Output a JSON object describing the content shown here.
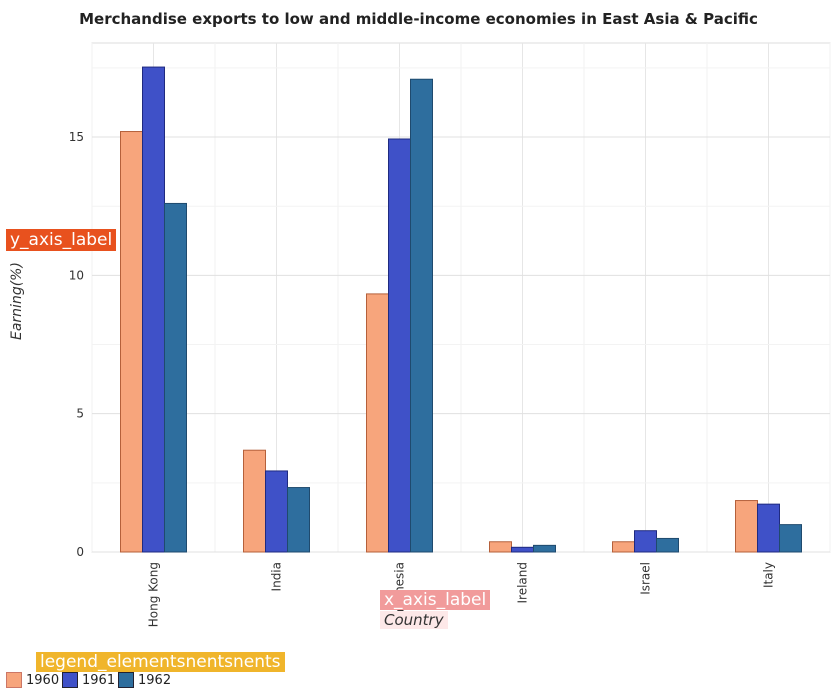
{
  "title": "Merchandise exports to low and middle-income economies in East Asia & Pacific",
  "colors": {
    "1960": "#f7a57c",
    "1961": "#3f51c8",
    "1962": "#2e6e9e"
  },
  "chart_data": {
    "type": "bar",
    "title": "Merchandise exports to low and middle-income economies in East Asia & Pacific",
    "xlabel": "Country",
    "ylabel": "Earning(%)",
    "ylabel_placeholder": "y_axis_label",
    "xlabel_placeholder": "x_axis_label",
    "legend_placeholder": "legend_elementsnentsnents",
    "categories": [
      "Hong Kong",
      "India",
      "Indonesia",
      "Ireland",
      "Israel",
      "Italy"
    ],
    "series": [
      {
        "name": "1960",
        "values": [
          15.2,
          3.68,
          9.33,
          0.37,
          0.37,
          1.86
        ]
      },
      {
        "name": "1961",
        "values": [
          17.53,
          2.93,
          14.93,
          0.17,
          0.77,
          1.73
        ]
      },
      {
        "name": "1962",
        "values": [
          12.6,
          2.33,
          17.09,
          0.24,
          0.49,
          0.99
        ]
      }
    ],
    "yticks": [
      0,
      5,
      10,
      15
    ],
    "ylim": [
      0,
      18.4
    ],
    "grid": true,
    "legend_position": "bottom-left"
  }
}
